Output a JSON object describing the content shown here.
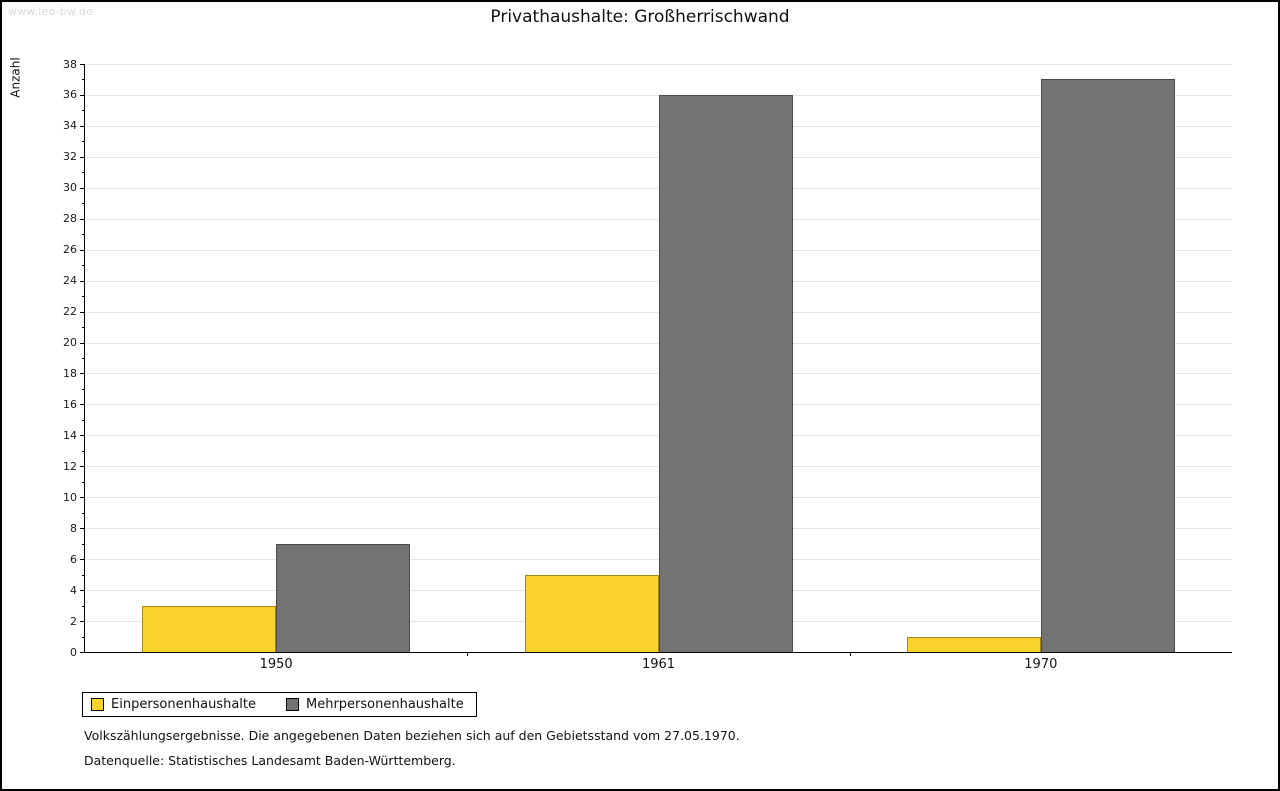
{
  "watermark": "www.leo-bw.de",
  "chart_data": {
    "type": "bar",
    "title": "Privathaushalte: Großherrischwand",
    "ylabel": "Anzahl",
    "xlabel": "",
    "categories": [
      "1950",
      "1961",
      "1970"
    ],
    "series": [
      {
        "name": "Einpersonenhaushalte",
        "color": "#F9D22B",
        "values": [
          3,
          5,
          1
        ]
      },
      {
        "name": "Mehrpersonenhaushalte",
        "color": "#737373",
        "values": [
          7,
          36,
          37
        ]
      }
    ],
    "ylim": [
      0,
      38
    ],
    "ytick_step": 2,
    "grid": true,
    "legend_position": "bottom-left"
  },
  "footnotes": {
    "line1": "Volkszählungsergebnisse. Die angegebenen Daten beziehen sich auf den Gebietsstand vom 27.05.1970.",
    "line2": "Datenquelle: Statistisches Landesamt Baden-Württemberg."
  }
}
